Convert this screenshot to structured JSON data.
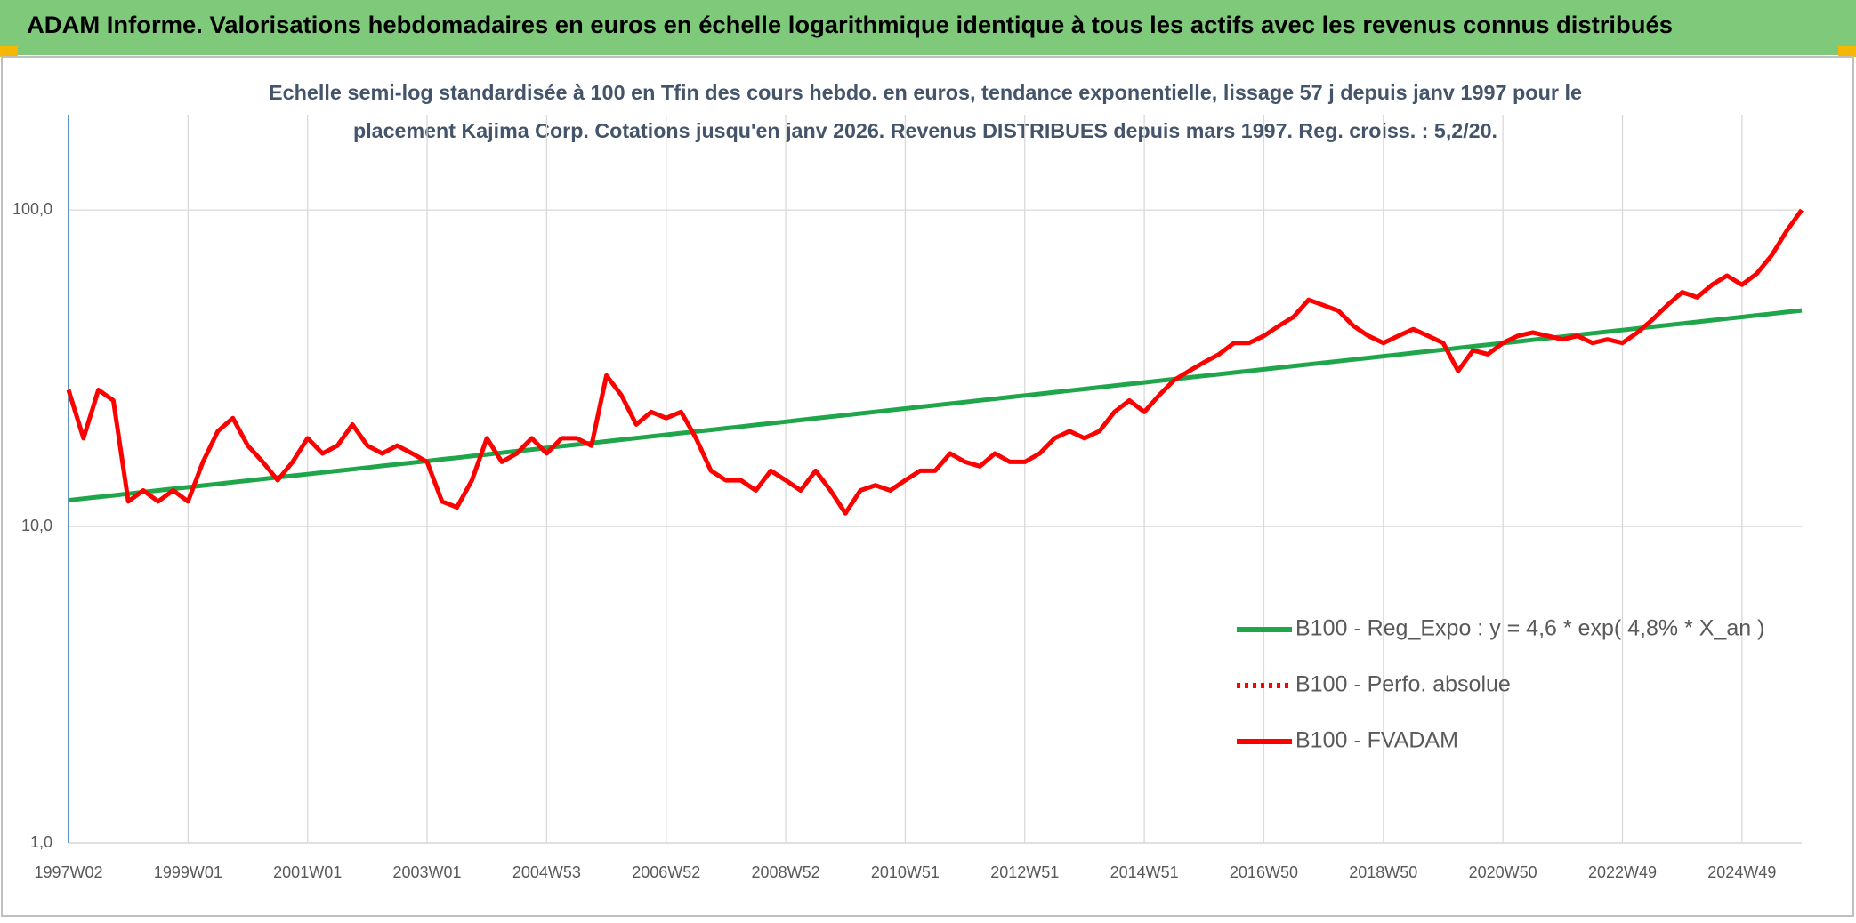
{
  "chart_data": {
    "type": "line",
    "title": "ADAM Informe. Valorisations hebdomadaires en euros en échelle logarithmique identique à tous les actifs avec les revenus connus distribués",
    "subtitle": [
      "Echelle semi-log standardisée à 100 en Tfin des cours hebdo. en euros, tendance exponentielle, lissage 57 j depuis janv 1997 pour le",
      "placement Kajima Corp. Cotations jusqu'en janv 2026. Revenus DISTRIBUES depuis mars 1997. Reg. croiss. : 5,2/20."
    ],
    "categories": [
      "1997W02",
      null,
      null,
      null,
      null,
      null,
      null,
      null,
      "1999W01",
      null,
      null,
      null,
      null,
      null,
      null,
      null,
      "2001W01",
      null,
      null,
      null,
      null,
      null,
      null,
      null,
      "2003W01",
      null,
      null,
      null,
      null,
      null,
      null,
      null,
      "2004W53",
      null,
      null,
      null,
      null,
      null,
      null,
      null,
      "2006W52",
      null,
      null,
      null,
      null,
      null,
      null,
      null,
      "2008W52",
      null,
      null,
      null,
      null,
      null,
      null,
      null,
      "2010W51",
      null,
      null,
      null,
      null,
      null,
      null,
      null,
      "2012W51",
      null,
      null,
      null,
      null,
      null,
      null,
      null,
      "2014W51",
      null,
      null,
      null,
      null,
      null,
      null,
      null,
      "2016W50",
      null,
      null,
      null,
      null,
      null,
      null,
      null,
      "2018W50",
      null,
      null,
      null,
      null,
      null,
      null,
      null,
      "2020W50",
      null,
      null,
      null,
      null,
      null,
      null,
      null,
      "2022W49",
      null,
      null,
      null,
      null,
      null,
      null,
      null,
      "2024W49",
      null,
      null,
      null,
      null
    ],
    "series": [
      {
        "name": "B100 - Reg_Expo : y = 4,6 * exp( 4,8% *  X_an )",
        "color": "#1fa64a",
        "dash": false,
        "values": [
          12.1,
          12.25,
          12.39,
          12.54,
          12.69,
          12.85,
          13.0,
          13.16,
          13.31,
          13.47,
          13.63,
          13.8,
          13.96,
          14.13,
          14.3,
          14.47,
          14.64,
          14.82,
          14.99,
          15.17,
          15.35,
          15.54,
          15.72,
          15.91,
          16.1,
          16.3,
          16.49,
          16.69,
          16.89,
          17.09,
          17.3,
          17.5,
          17.71,
          17.93,
          18.14,
          18.36,
          18.57,
          18.8,
          19.02,
          19.25,
          19.48,
          19.72,
          19.95,
          20.19,
          20.43,
          20.68,
          20.93,
          21.18,
          21.43,
          21.69,
          21.95,
          22.21,
          22.47,
          22.75,
          23.02,
          23.3,
          23.57,
          23.86,
          24.15,
          24.43,
          24.72,
          25.02,
          25.32,
          25.62,
          25.92,
          26.24,
          26.56,
          26.87,
          27.19,
          27.52,
          27.85,
          28.18,
          28.51,
          28.86,
          29.21,
          29.56,
          29.91,
          30.27,
          30.64,
          31.0,
          31.36,
          31.74,
          32.13,
          32.51,
          32.89,
          33.29,
          33.7,
          34.1,
          34.5,
          34.92,
          35.34,
          35.76,
          36.18,
          36.62,
          37.07,
          37.51,
          37.95,
          38.41,
          38.88,
          39.34,
          39.8,
          40.29,
          40.77,
          41.26,
          41.74,
          42.25,
          42.76,
          43.26,
          43.77,
          44.31,
          44.84,
          45.38,
          45.91,
          46.47,
          47.03,
          47.59,
          48.15
        ]
      },
      {
        "name": "B100 - Perfo. absolue",
        "color": "#ff0000",
        "dash": true,
        "values": [
          27,
          19,
          27,
          25,
          12,
          13,
          12,
          13,
          12,
          16,
          20,
          22,
          18,
          16,
          14,
          16,
          19,
          17,
          18,
          21,
          18,
          17,
          18,
          17,
          16,
          12,
          11.5,
          14,
          19,
          16,
          17,
          19,
          17,
          19,
          19,
          18,
          30,
          26,
          21,
          23,
          22,
          23,
          19,
          15,
          14,
          14,
          13,
          15,
          14,
          13,
          15,
          13,
          11,
          13,
          13.5,
          13,
          14,
          15,
          15,
          17,
          16,
          15.5,
          17,
          16,
          16,
          17,
          19,
          20,
          19,
          20,
          23,
          25,
          23,
          26,
          29,
          31,
          33,
          35,
          38,
          38,
          40,
          43,
          46,
          52,
          50,
          48,
          43,
          40,
          38,
          40,
          42,
          40,
          38,
          31,
          36,
          35,
          38,
          40,
          41,
          40,
          39,
          40,
          38,
          39,
          38,
          41,
          45,
          50,
          55,
          53,
          58,
          62,
          58,
          63,
          72,
          86,
          100
        ]
      },
      {
        "name": "B100 - FVADAM",
        "color": "#ff0000",
        "dash": false,
        "values": [
          27,
          19,
          27,
          25,
          12,
          13,
          12,
          13,
          12,
          16,
          20,
          22,
          18,
          16,
          14,
          16,
          19,
          17,
          18,
          21,
          18,
          17,
          18,
          17,
          16,
          12,
          11.5,
          14,
          19,
          16,
          17,
          19,
          17,
          19,
          19,
          18,
          30,
          26,
          21,
          23,
          22,
          23,
          19,
          15,
          14,
          14,
          13,
          15,
          14,
          13,
          15,
          13,
          11,
          13,
          13.5,
          13,
          14,
          15,
          15,
          17,
          16,
          15.5,
          17,
          16,
          16,
          17,
          19,
          20,
          19,
          20,
          23,
          25,
          23,
          26,
          29,
          31,
          33,
          35,
          38,
          38,
          40,
          43,
          46,
          52,
          50,
          48,
          43,
          40,
          38,
          40,
          42,
          40,
          38,
          31,
          36,
          35,
          38,
          40,
          41,
          40,
          39,
          40,
          38,
          39,
          38,
          41,
          45,
          50,
          55,
          53,
          58,
          62,
          58,
          63,
          72,
          86,
          100
        ]
      }
    ],
    "ylim": [
      1,
      200
    ],
    "log_y": true,
    "yticks": [
      {
        "value": 1,
        "label": "1,0"
      },
      {
        "value": 10,
        "label": "10,0"
      },
      {
        "value": 100,
        "label": "100,0"
      }
    ],
    "grid": true,
    "legend": "lower right"
  }
}
